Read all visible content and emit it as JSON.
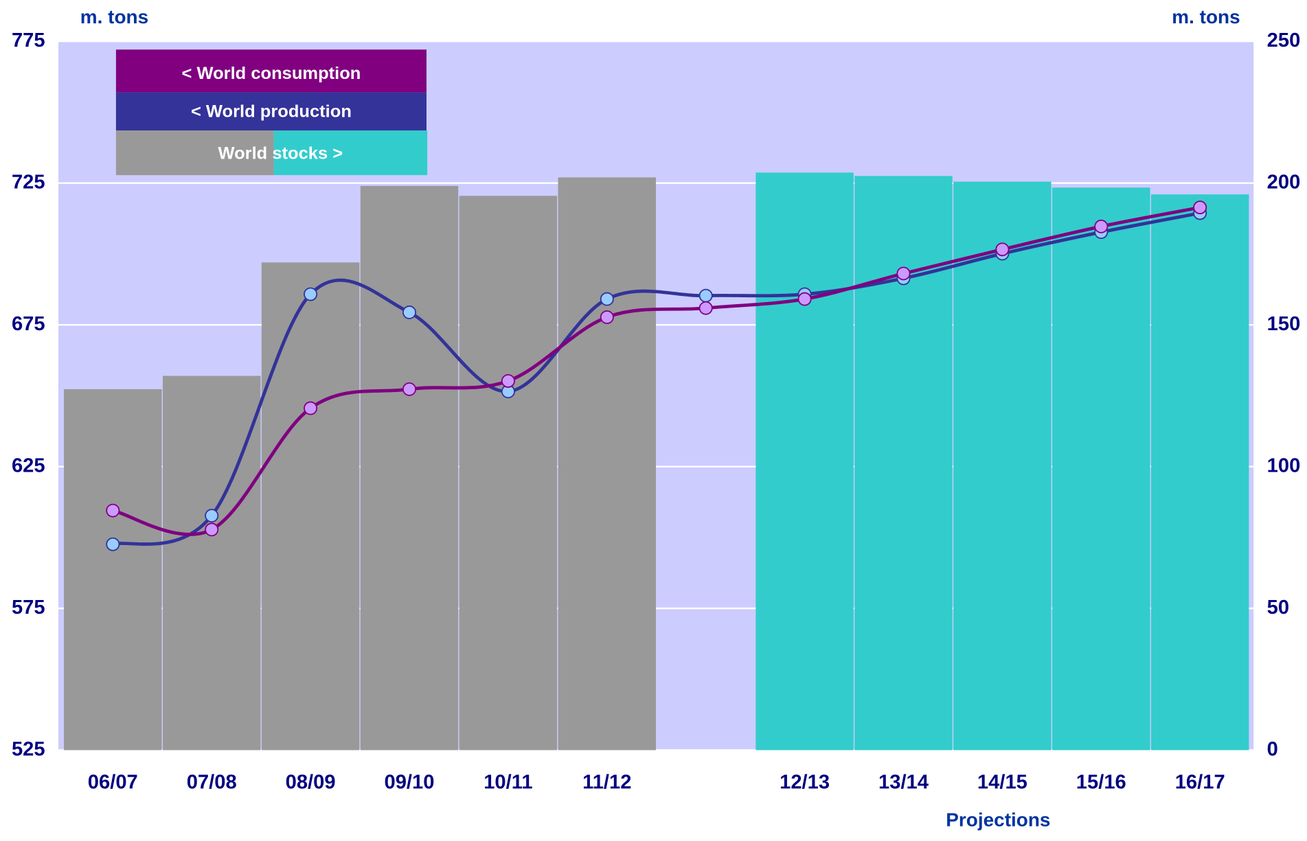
{
  "chart_data": {
    "type": "bar_line",
    "y_label": "m. tons",
    "y2_label": "m. tons",
    "annotation": "Projections",
    "categories": [
      "06/07",
      "07/08",
      "08/09",
      "09/10",
      "10/11",
      "11/12",
      null,
      "12/13",
      "13/14",
      "14/15",
      "15/16",
      "16/17"
    ],
    "ylim": [
      525,
      775
    ],
    "yticks": [
      525,
      575,
      625,
      675,
      725,
      775
    ],
    "y2lim": [
      0,
      250
    ],
    "y2ticks": [
      0,
      50,
      100,
      150,
      200,
      250
    ],
    "grid": true,
    "background": "#ccccff",
    "series": [
      {
        "name": "World stocks >",
        "type": "bar",
        "axis": "y2",
        "colors": [
          "#999999",
          "#999999",
          "#999999",
          "#999999",
          "#999999",
          "#999999",
          null,
          "#33cccc",
          "#33cccc",
          "#33cccc",
          "#33cccc",
          "#33cccc"
        ],
        "values": [
          127.3,
          132,
          172,
          199,
          195.5,
          202,
          null,
          203.7,
          202.5,
          200.5,
          198.4,
          196
        ]
      },
      {
        "name": "< World production",
        "type": "line",
        "color": "#333399",
        "marker_color": "#99ccff",
        "values": [
          597.6,
          607.7,
          685.8,
          679.4,
          651.5,
          684.1,
          685.3,
          685.8,
          691.4,
          700.1,
          707.7,
          714.4
        ]
      },
      {
        "name": "< World consumption",
        "type": "line",
        "color": "#800080",
        "marker_color": "#cc99ff",
        "values": [
          609.5,
          602.8,
          645.6,
          652.3,
          655.2,
          677.7,
          680.9,
          684.1,
          693.1,
          701.6,
          709.7,
          716.4
        ]
      }
    ]
  }
}
